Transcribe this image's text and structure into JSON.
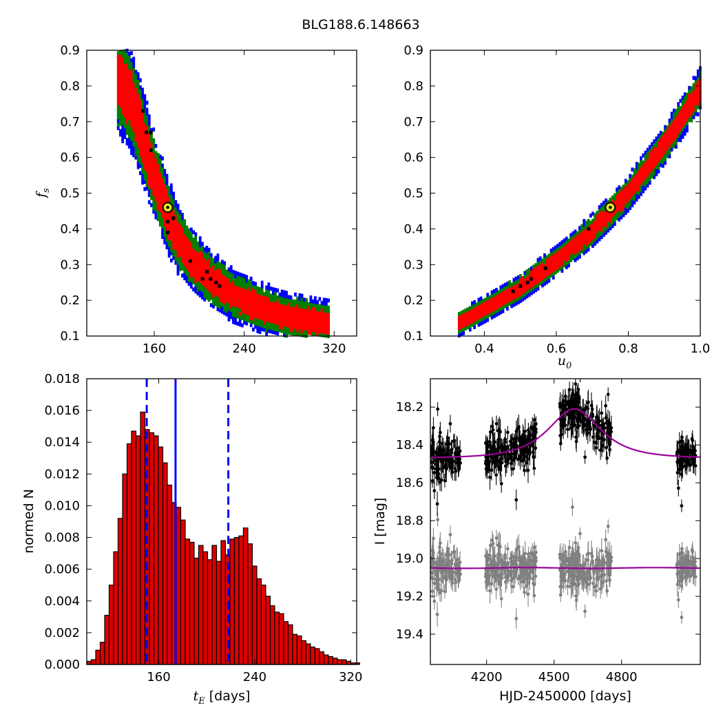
{
  "title": "BLG188.6.148663",
  "colors": {
    "sigma1": "#ff0000",
    "sigma2": "#008000",
    "sigma3": "#0000ff",
    "best_fit_fill": "#e0e020",
    "hist_bar": "#dd0000",
    "median_line": "#0000ff",
    "model": "#990099",
    "data_I": "#000000",
    "data_resid": "#808080"
  },
  "chart_data": [
    {
      "type": "heatmap",
      "panel": "fs_vs_tE",
      "xlim": [
        100,
        340
      ],
      "ylim": [
        0.1,
        0.9
      ],
      "xticks": [
        "160",
        "240",
        "320"
      ],
      "xtick_values": [
        160,
        240,
        320
      ],
      "yticks": [
        "0.1",
        "0.2",
        "0.3",
        "0.4",
        "0.5",
        "0.6",
        "0.7",
        "0.8",
        "0.9"
      ],
      "ylabel": "f_s",
      "ridge": [
        [
          128,
          0.82
        ],
        [
          140,
          0.76
        ],
        [
          150,
          0.66
        ],
        [
          160,
          0.55
        ],
        [
          170,
          0.46
        ],
        [
          180,
          0.38
        ],
        [
          195,
          0.31
        ],
        [
          210,
          0.26
        ],
        [
          230,
          0.215
        ],
        [
          255,
          0.18
        ],
        [
          280,
          0.155
        ],
        [
          305,
          0.14
        ],
        [
          315,
          0.135
        ]
      ],
      "best_fit": {
        "tE": 172,
        "fs": 0.46
      },
      "black_points": [
        [
          150,
          0.73
        ],
        [
          153,
          0.67
        ],
        [
          157,
          0.67
        ],
        [
          157,
          0.62
        ],
        [
          172,
          0.42
        ],
        [
          177,
          0.43
        ],
        [
          172,
          0.39
        ],
        [
          192,
          0.31
        ],
        [
          203,
          0.26
        ],
        [
          210,
          0.26
        ],
        [
          215,
          0.25
        ],
        [
          218,
          0.24
        ],
        [
          207,
          0.28
        ]
      ]
    },
    {
      "type": "heatmap",
      "panel": "fs_vs_u0",
      "xlim": [
        0.25,
        1.0
      ],
      "ylim": [
        0.1,
        0.9
      ],
      "xticks": [
        "0.4",
        "0.6",
        "0.8",
        "1.0"
      ],
      "xtick_values": [
        0.4,
        0.6,
        0.8,
        1.0
      ],
      "yticks": [
        "0.1",
        "0.2",
        "0.3",
        "0.4",
        "0.5",
        "0.6",
        "0.7",
        "0.8",
        "0.9"
      ],
      "xlabel": "u_0",
      "ridge": [
        [
          0.33,
          0.135
        ],
        [
          0.4,
          0.175
        ],
        [
          0.5,
          0.235
        ],
        [
          0.6,
          0.31
        ],
        [
          0.7,
          0.395
        ],
        [
          0.8,
          0.5
        ],
        [
          0.9,
          0.635
        ],
        [
          1.0,
          0.79
        ]
      ],
      "best_fit": {
        "u0": 0.75,
        "fs": 0.46
      },
      "black_points": [
        [
          0.48,
          0.225
        ],
        [
          0.5,
          0.24
        ],
        [
          0.53,
          0.26
        ],
        [
          0.57,
          0.29
        ],
        [
          0.69,
          0.4
        ],
        [
          0.52,
          0.25
        ]
      ]
    },
    {
      "type": "bar",
      "panel": "tE_histogram",
      "xlim": [
        100,
        325
      ],
      "ylim": [
        0,
        0.018
      ],
      "xticks": [
        "160",
        "240",
        "320"
      ],
      "xtick_values": [
        160,
        240,
        320
      ],
      "yticks": [
        "0.000",
        "0.002",
        "0.004",
        "0.006",
        "0.008",
        "0.010",
        "0.012",
        "0.014",
        "0.016",
        "0.018"
      ],
      "ylabel": "normed N",
      "xlabel_var": "t_E",
      "xlabel_unit": "[days]",
      "bin_start": 100,
      "bin_width": 3.73,
      "values": [
        0.0002,
        0.0003,
        0.0009,
        0.0014,
        0.0031,
        0.005,
        0.0071,
        0.0092,
        0.012,
        0.0139,
        0.0147,
        0.0144,
        0.0159,
        0.0148,
        0.0146,
        0.0144,
        0.0137,
        0.0127,
        0.0113,
        0.0102,
        0.0099,
        0.0091,
        0.0079,
        0.0077,
        0.0067,
        0.0075,
        0.0071,
        0.0066,
        0.0075,
        0.0065,
        0.0078,
        0.0069,
        0.0079,
        0.008,
        0.0081,
        0.0086,
        0.0076,
        0.0062,
        0.0054,
        0.005,
        0.0043,
        0.0037,
        0.0033,
        0.0032,
        0.0027,
        0.0025,
        0.0019,
        0.0018,
        0.0015,
        0.0013,
        0.0011,
        0.001,
        0.0008,
        0.0006,
        0.0005,
        0.0004,
        0.0003,
        0.0003,
        0.0002,
        0.0001,
        0.0001
      ],
      "median": 174,
      "quantiles": [
        150,
        218
      ]
    },
    {
      "type": "scatter",
      "panel": "light_curve",
      "xlim": [
        3950,
        5150
      ],
      "ylim": [
        19.56,
        18.05
      ],
      "xticks": [
        "4200",
        "4500",
        "4800"
      ],
      "xtick_values": [
        4200,
        4500,
        4800
      ],
      "yticks": [
        "18.2",
        "18.4",
        "18.6",
        "18.8",
        "19.0",
        "19.2",
        "19.4"
      ],
      "ytick_values": [
        18.2,
        18.4,
        18.6,
        18.8,
        19.0,
        19.2,
        19.4
      ],
      "xlabel": "HJD-2450000 [days]",
      "ylabel": "I [mag]",
      "seasons": [
        [
          3950,
          4085
        ],
        [
          4195,
          4420
        ],
        [
          4525,
          4755
        ],
        [
          5045,
          5130
        ]
      ],
      "model": {
        "baseline": 18.47,
        "peak_time": 4590,
        "peak_mag": 18.21,
        "tE": 172,
        "u0": 0.75,
        "fs": 0.46
      },
      "residual_offset": 19.05,
      "scatter": 0.05
    }
  ]
}
